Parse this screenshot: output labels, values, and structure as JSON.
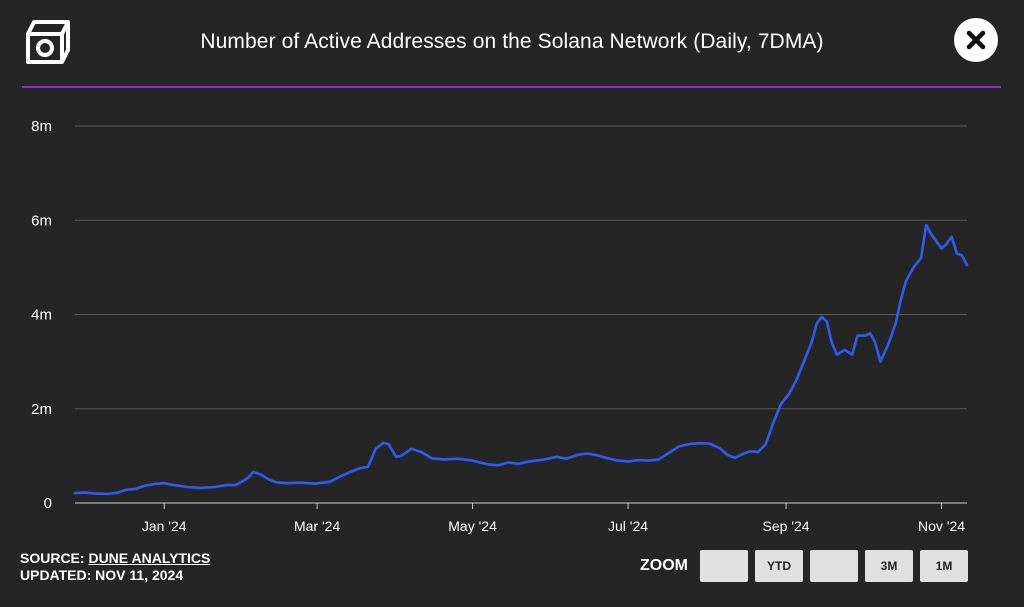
{
  "header": {
    "title": "Number of Active Addresses on the Solana Network (Daily, 7DMA)",
    "logo_icon": "cube-logo-icon",
    "close_icon": "close-icon"
  },
  "colors": {
    "background": "#252525",
    "accent_rule": "#8a2be2",
    "series_line": "#2f5cf5",
    "grid": "#5a5a5a",
    "axis_text": "#ffffff"
  },
  "footer": {
    "source_prefix": "SOURCE: ",
    "source_link": "DUNE ANALYTICS",
    "updated": "UPDATED: NOV 11, 2024"
  },
  "zoom": {
    "label": "ZOOM",
    "buttons": [
      "",
      "YTD",
      "",
      "3M",
      "1M"
    ]
  },
  "chart_data": {
    "type": "line",
    "title": "Number of Active Addresses on the Solana Network (Daily, 7DMA)",
    "xlabel": "",
    "ylabel": "",
    "ylim": [
      0,
      8000000
    ],
    "xlim": [
      "2023-11-27",
      "2024-11-11"
    ],
    "grid": true,
    "legend": "none",
    "y_ticks": [
      {
        "value": 0,
        "label": "0"
      },
      {
        "value": 2000000,
        "label": "2m"
      },
      {
        "value": 4000000,
        "label": "4m"
      },
      {
        "value": 6000000,
        "label": "6m"
      },
      {
        "value": 8000000,
        "label": "8m"
      }
    ],
    "x_ticks": [
      {
        "date": "2024-01-01",
        "label": "Jan '24"
      },
      {
        "date": "2024-03-01",
        "label": "Mar '24"
      },
      {
        "date": "2024-05-01",
        "label": "May '24"
      },
      {
        "date": "2024-07-01",
        "label": "Jul '24"
      },
      {
        "date": "2024-09-01",
        "label": "Sep '24"
      },
      {
        "date": "2024-11-01",
        "label": "Nov '24"
      }
    ],
    "series": [
      {
        "points": [
          [
            "2023-11-27",
            210000
          ],
          [
            "2023-12-01",
            220000
          ],
          [
            "2023-12-05",
            200000
          ],
          [
            "2023-12-10",
            190000
          ],
          [
            "2023-12-14",
            220000
          ],
          [
            "2023-12-17",
            280000
          ],
          [
            "2023-12-21",
            300000
          ],
          [
            "2023-12-24",
            360000
          ],
          [
            "2023-12-28",
            400000
          ],
          [
            "2024-01-01",
            420000
          ],
          [
            "2024-01-05",
            380000
          ],
          [
            "2024-01-10",
            340000
          ],
          [
            "2024-01-15",
            320000
          ],
          [
            "2024-01-21",
            340000
          ],
          [
            "2024-01-25",
            380000
          ],
          [
            "2024-01-29",
            380000
          ],
          [
            "2024-02-01",
            470000
          ],
          [
            "2024-02-03",
            540000
          ],
          [
            "2024-02-05",
            660000
          ],
          [
            "2024-02-08",
            600000
          ],
          [
            "2024-02-11",
            500000
          ],
          [
            "2024-02-14",
            440000
          ],
          [
            "2024-02-18",
            420000
          ],
          [
            "2024-02-24",
            430000
          ],
          [
            "2024-02-29",
            410000
          ],
          [
            "2024-03-06",
            450000
          ],
          [
            "2024-03-10",
            560000
          ],
          [
            "2024-03-14",
            660000
          ],
          [
            "2024-03-18",
            740000
          ],
          [
            "2024-03-21",
            770000
          ],
          [
            "2024-03-24",
            1150000
          ],
          [
            "2024-03-27",
            1280000
          ],
          [
            "2024-03-29",
            1250000
          ],
          [
            "2024-04-01",
            980000
          ],
          [
            "2024-04-03",
            1000000
          ],
          [
            "2024-04-07",
            1150000
          ],
          [
            "2024-04-11",
            1080000
          ],
          [
            "2024-04-15",
            950000
          ],
          [
            "2024-04-20",
            920000
          ],
          [
            "2024-04-25",
            940000
          ],
          [
            "2024-05-01",
            900000
          ],
          [
            "2024-05-07",
            820000
          ],
          [
            "2024-05-11",
            800000
          ],
          [
            "2024-05-15",
            860000
          ],
          [
            "2024-05-19",
            830000
          ],
          [
            "2024-05-23",
            880000
          ],
          [
            "2024-05-29",
            920000
          ],
          [
            "2024-06-03",
            980000
          ],
          [
            "2024-06-07",
            940000
          ],
          [
            "2024-06-11",
            1020000
          ],
          [
            "2024-06-15",
            1050000
          ],
          [
            "2024-06-19",
            1010000
          ],
          [
            "2024-06-23",
            950000
          ],
          [
            "2024-06-27",
            900000
          ],
          [
            "2024-07-01",
            880000
          ],
          [
            "2024-07-05",
            910000
          ],
          [
            "2024-07-09",
            900000
          ],
          [
            "2024-07-13",
            920000
          ],
          [
            "2024-07-17",
            1060000
          ],
          [
            "2024-07-21",
            1200000
          ],
          [
            "2024-07-25",
            1250000
          ],
          [
            "2024-07-29",
            1270000
          ],
          [
            "2024-08-02",
            1260000
          ],
          [
            "2024-08-06",
            1160000
          ],
          [
            "2024-08-09",
            1020000
          ],
          [
            "2024-08-12",
            960000
          ],
          [
            "2024-08-15",
            1040000
          ],
          [
            "2024-08-18",
            1100000
          ],
          [
            "2024-08-21",
            1080000
          ],
          [
            "2024-08-24",
            1250000
          ],
          [
            "2024-08-27",
            1700000
          ],
          [
            "2024-08-30",
            2100000
          ],
          [
            "2024-09-02",
            2300000
          ],
          [
            "2024-09-05",
            2600000
          ],
          [
            "2024-09-08",
            3000000
          ],
          [
            "2024-09-11",
            3400000
          ],
          [
            "2024-09-13",
            3800000
          ],
          [
            "2024-09-15",
            3950000
          ],
          [
            "2024-09-17",
            3850000
          ],
          [
            "2024-09-19",
            3400000
          ],
          [
            "2024-09-21",
            3150000
          ],
          [
            "2024-09-24",
            3250000
          ],
          [
            "2024-09-27",
            3150000
          ],
          [
            "2024-09-29",
            3550000
          ],
          [
            "2024-10-02",
            3550000
          ],
          [
            "2024-10-04",
            3600000
          ],
          [
            "2024-10-06",
            3400000
          ],
          [
            "2024-10-08",
            3000000
          ],
          [
            "2024-10-11",
            3350000
          ],
          [
            "2024-10-14",
            3800000
          ],
          [
            "2024-10-16",
            4300000
          ],
          [
            "2024-10-18",
            4700000
          ],
          [
            "2024-10-21",
            5000000
          ],
          [
            "2024-10-24",
            5200000
          ],
          [
            "2024-10-26",
            5900000
          ],
          [
            "2024-10-28",
            5700000
          ],
          [
            "2024-10-30",
            5550000
          ],
          [
            "2024-11-01",
            5400000
          ],
          [
            "2024-11-03",
            5500000
          ],
          [
            "2024-11-05",
            5650000
          ],
          [
            "2024-11-07",
            5300000
          ],
          [
            "2024-11-09",
            5250000
          ],
          [
            "2024-11-11",
            5050000
          ]
        ]
      }
    ]
  }
}
